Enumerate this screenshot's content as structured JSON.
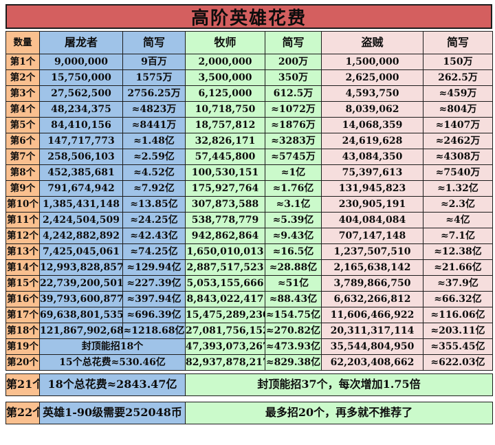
{
  "title": "高阶英雄花费",
  "columns": [
    "数量",
    "屠龙者",
    "简写",
    "牧师",
    "简写",
    "盗贼",
    "简写"
  ],
  "rows": [
    {
      "label": "第1个",
      "cells": [
        "9,000,000",
        "9百万",
        "2,000,000",
        "200万",
        "1,500,000",
        "150万"
      ]
    },
    {
      "label": "第2个",
      "cells": [
        "15,750,000",
        "1575万",
        "3,500,000",
        "350万",
        "2,625,000",
        "262.5万"
      ]
    },
    {
      "label": "第3个",
      "cells": [
        "27,562,500",
        "2756.25万",
        "6,125,000",
        "612.5万",
        "4,593,750",
        "≈459万"
      ]
    },
    {
      "label": "第4个",
      "cells": [
        "48,234,375",
        "≈4823万",
        "10,718,750",
        "≈1072万",
        "8,039,062",
        "≈804万"
      ]
    },
    {
      "label": "第5个",
      "cells": [
        "84,410,156",
        "≈8441万",
        "18,757,812",
        "≈1876万",
        "14,068,359",
        "≈1407万"
      ]
    },
    {
      "label": "第6个",
      "cells": [
        "147,717,773",
        "≈1.48亿",
        "32,826,171",
        "≈3283万",
        "24,619,628",
        "≈2462万"
      ]
    },
    {
      "label": "第7个",
      "cells": [
        "258,506,103",
        "≈2.59亿",
        "57,445,800",
        "≈5745万",
        "43,084,350",
        "≈4308万"
      ]
    },
    {
      "label": "第8个",
      "cells": [
        "452,385,681",
        "≈4.52亿",
        "100,530,151",
        "≈1亿",
        "75,397,613",
        "≈7540万"
      ]
    },
    {
      "label": "第9个",
      "cells": [
        "791,674,942",
        "≈7.92亿",
        "175,927,764",
        "≈1.76亿",
        "131,945,823",
        "≈1.32亿"
      ]
    },
    {
      "label": "第10个",
      "cells": [
        "1,385,431,148",
        "≈13.85亿",
        "307,873,588",
        "≈3.1亿",
        "230,905,191",
        "≈2.3亿"
      ]
    },
    {
      "label": "第11个",
      "cells": [
        "2,424,504,509",
        "≈24.25亿",
        "538,778,779",
        "≈5.39亿",
        "404,084,084",
        "≈4亿"
      ]
    },
    {
      "label": "第12个",
      "cells": [
        "4,242,882,892",
        "≈42.43亿",
        "942,862,864",
        "≈9.43亿",
        "707,147,148",
        "≈7.1亿"
      ]
    },
    {
      "label": "第13个",
      "cells": [
        "7,425,045,061",
        "≈74.25亿",
        "1,650,010,013",
        "≈16.5亿",
        "1,237,507,510",
        "≈12.38亿"
      ]
    },
    {
      "label": "第14个",
      "cells": [
        "12,993,828,857",
        "≈129.94亿",
        "2,887,517,523",
        "≈28.88亿",
        "2,165,638,142",
        "≈21.66亿"
      ]
    },
    {
      "label": "第15个",
      "cells": [
        "22,739,200,501",
        "≈227.39亿",
        "5,053,155,666",
        "≈51亿",
        "3,789,866,750",
        "≈37.9亿"
      ]
    },
    {
      "label": "第16个",
      "cells": [
        "39,793,600,877",
        "≈397.94亿",
        "8,843,022,417",
        "≈88.43亿",
        "6,632,266,812",
        "≈66.32亿"
      ]
    },
    {
      "label": "第17个",
      "cells": [
        "69,638,801,535",
        "≈696.39亿",
        "15,475,289,230",
        "≈154.75亿",
        "11,606,466,922",
        "≈116.06亿"
      ]
    },
    {
      "label": "第18个",
      "cells": [
        "121,867,902,686",
        "≈1218.68亿",
        "27,081,756,152",
        "≈270.82亿",
        "20,311,317,114",
        "≈203.11亿"
      ]
    },
    {
      "label": "第19个",
      "merged": "封顶能招18个",
      "cells": [
        "47,393,073,267",
        "≈473.93亿",
        "35,544,804,950",
        "≈355.45亿"
      ]
    },
    {
      "label": "第20个",
      "merged": "15个总花费≈530.46亿",
      "cells": [
        "82,937,878,217",
        "≈829.38亿",
        "62,203,408,662",
        "≈622.03亿"
      ]
    }
  ],
  "footer_rows": [
    {
      "label": "第21个",
      "left": "18个总花费≈2843.47亿",
      "right": "封顶能招37个，每次增加1.75倍"
    },
    {
      "label": "第22个",
      "left": "英雄1-90级需要252048币",
      "right": "最多招20个，再多就不推荐了"
    }
  ],
  "colors": {
    "title_bg": "#D45F5F",
    "quantity_col_bg": "#FAC08F",
    "dragonslayer_cols_bg": "#9FC3E8",
    "priest_cols_bg": "#CBFACB",
    "rogue_cols_bg": "#F6DEDD",
    "grid_border": "#1c1c1c"
  }
}
